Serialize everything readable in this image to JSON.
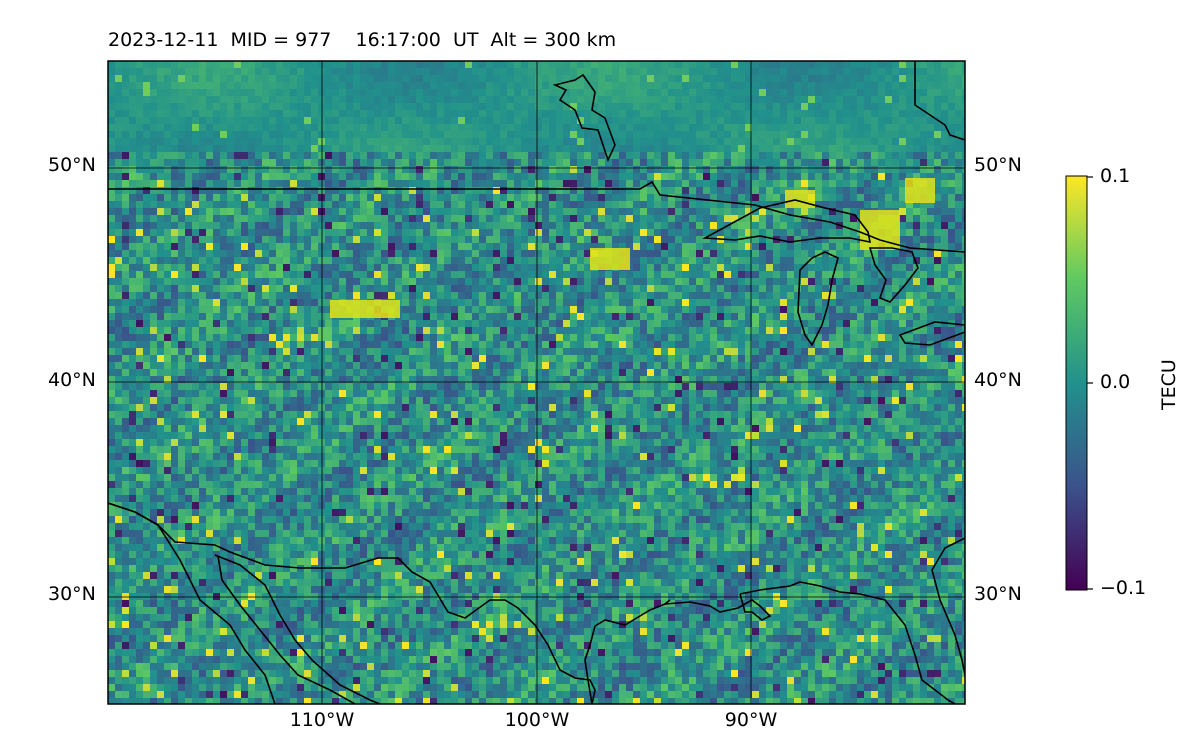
{
  "title": "2023-12-11  MID = 977    16:17:00  UT  Alt = 300 km",
  "map": {
    "lat_labels": [
      "50°N",
      "40°N",
      "30°N"
    ],
    "lon_labels": [
      "110°W",
      "100°W",
      "90°W"
    ],
    "lat_values": [
      50,
      40,
      30
    ],
    "lon_values": [
      -110,
      -100,
      -90
    ],
    "extent": {
      "lon_min": -120,
      "lon_max": -80,
      "lat_min": 25,
      "lat_max": 55
    },
    "field": "TEC perturbation",
    "colormap": "viridis"
  },
  "colorbar": {
    "label": "TECU",
    "ticks": [
      "0.1",
      "0.0",
      "−0.1"
    ],
    "tick_values": [
      0.1,
      0.0,
      -0.1
    ],
    "colors": [
      "#440154",
      "#3b528b",
      "#21918c",
      "#5ec962",
      "#fde725"
    ]
  }
}
